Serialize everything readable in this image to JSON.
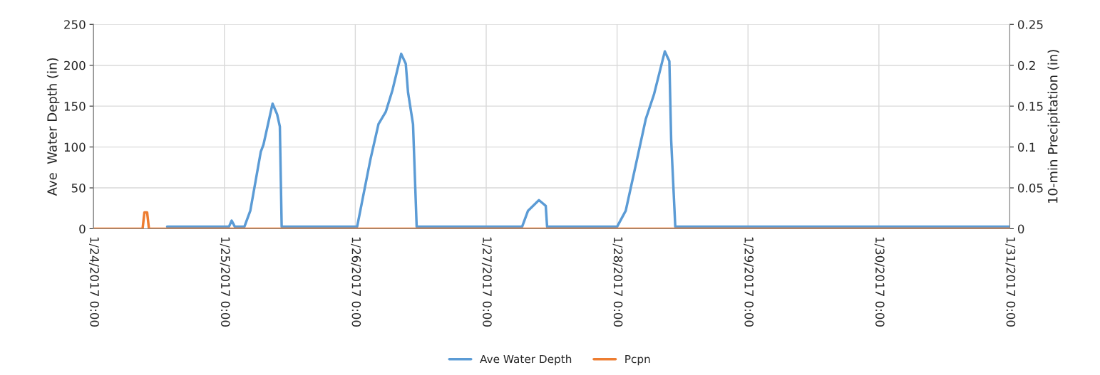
{
  "chart_data": {
    "type": "line",
    "ylabel": "Ave  Water Depth (in)",
    "y2label": "10-min Precipitation (in)",
    "xlim": [
      "2017-01-24T00:00",
      "2017-01-31T00:00"
    ],
    "xticks": [
      {
        "value": "2017-01-24T00:00",
        "label": "1/24/2017 0:00"
      },
      {
        "value": "2017-01-25T00:00",
        "label": "1/25/2017 0:00"
      },
      {
        "value": "2017-01-26T00:00",
        "label": "1/26/2017 0:00"
      },
      {
        "value": "2017-01-27T00:00",
        "label": "1/27/2017 0:00"
      },
      {
        "value": "2017-01-28T00:00",
        "label": "1/28/2017 0:00"
      },
      {
        "value": "2017-01-29T00:00",
        "label": "1/29/2017 0:00"
      },
      {
        "value": "2017-01-30T00:00",
        "label": "1/30/2017 0:00"
      },
      {
        "value": "2017-01-31T00:00",
        "label": "1/31/2017 0:00"
      }
    ],
    "ylim": [
      0,
      250
    ],
    "yticks": [
      0,
      50,
      100,
      150,
      200,
      250
    ],
    "y2lim": [
      0,
      0.25
    ],
    "y2ticks": [
      0,
      0.05,
      {
        "value": 0.1,
        "label": "0.1"
      },
      0.15,
      {
        "value": 0.2,
        "label": "0.2"
      },
      0.25
    ],
    "grid": true,
    "legend": "bottom",
    "marker": "none",
    "line_style": "solid",
    "series": [
      {
        "name": "Ave Water Depth",
        "color": "#5b9bd5",
        "x": [
          "2017-01-24T13:30",
          "2017-01-25T00:50",
          "2017-01-25T01:20",
          "2017-01-25T01:55",
          "2017-01-25T03:40",
          "2017-01-25T04:45",
          "2017-01-25T06:40",
          "2017-01-25T07:10",
          "2017-01-25T08:50",
          "2017-01-25T09:40",
          "2017-01-25T10:10",
          "2017-01-25T10:30",
          "2017-01-26T00:20",
          "2017-01-26T02:45",
          "2017-01-26T04:15",
          "2017-01-26T05:35",
          "2017-01-26T06:50",
          "2017-01-26T08:25",
          "2017-01-26T09:15",
          "2017-01-26T09:40",
          "2017-01-26T10:35",
          "2017-01-26T11:15",
          "2017-01-27T06:35",
          "2017-01-27T07:40",
          "2017-01-27T09:40",
          "2017-01-27T10:55",
          "2017-01-27T11:10",
          "2017-01-28T00:00",
          "2017-01-28T01:35",
          "2017-01-28T02:50",
          "2017-01-28T05:15",
          "2017-01-28T06:45",
          "2017-01-28T08:45",
          "2017-01-28T09:35",
          "2017-01-28T09:55",
          "2017-01-28T10:40",
          "2017-01-31T00:00"
        ],
        "values": [
          2.5,
          2.5,
          10,
          2.5,
          2.5,
          22,
          94,
          103,
          153,
          140,
          125,
          2.5,
          2.5,
          84,
          128,
          143,
          170,
          214,
          202,
          167,
          128,
          2.5,
          2.5,
          22,
          35,
          28,
          2.5,
          2.5,
          22,
          60,
          134,
          164,
          217,
          205,
          108,
          2.5,
          2.5
        ]
      },
      {
        "name": "Pcpn",
        "color": "#ed7d31",
        "axis": "y2",
        "x": [
          "2017-01-24T00:00",
          "2017-01-24T09:00",
          "2017-01-24T09:20",
          "2017-01-24T09:50",
          "2017-01-24T10:10",
          "2017-01-31T00:00"
        ],
        "values": [
          0,
          0,
          0.02,
          0.02,
          0,
          0
        ]
      }
    ]
  }
}
